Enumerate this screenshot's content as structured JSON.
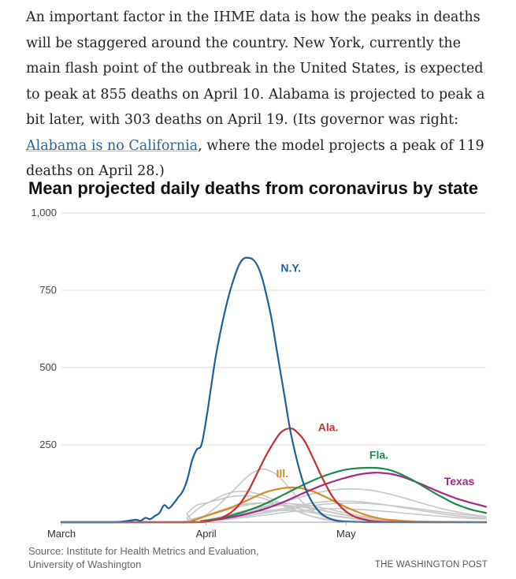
{
  "article": {
    "text_before_link": "An important factor in the IHME data is how the peaks in deaths will be staggered around the country. New York, currently the main flash point of the outbreak in the United States, is expected to peak at 855 deaths on April 10. Alabama is projected to peak a bit later, with 303 deaths on April 19. (Its governor was right: ",
    "link_text": "Alabama is no California",
    "text_after_link": ", where the model projects a peak of 119 deaths on April 28.)"
  },
  "chart_data": {
    "type": "line",
    "title": "Mean projected daily deaths from coronavirus by state",
    "xlabel": "",
    "ylabel": "",
    "x_unit": "day offset from March 1",
    "xlim": [
      0,
      91
    ],
    "ylim": [
      0,
      1000
    ],
    "yticks": [
      {
        "value": 0,
        "label": ""
      },
      {
        "value": 250,
        "label": "250"
      },
      {
        "value": 500,
        "label": "500"
      },
      {
        "value": 750,
        "label": "750"
      },
      {
        "value": 1000,
        "label": "1,000"
      }
    ],
    "xticks": [
      {
        "value": 0,
        "label": "March"
      },
      {
        "value": 31,
        "label": "April"
      },
      {
        "value": 61,
        "label": "May"
      }
    ],
    "grid": true,
    "series": [
      {
        "name": "N.Y.",
        "label": "N.Y.",
        "color": "#1f5fa0",
        "highlight": true,
        "label_x": 47,
        "label_y": 810,
        "x": [
          0,
          10,
          13,
          15,
          16,
          17,
          18,
          19,
          20,
          21,
          22,
          23,
          24,
          25,
          26,
          27,
          28,
          29,
          30,
          31,
          32,
          33,
          34,
          35,
          36,
          37,
          38,
          39,
          40,
          41,
          42,
          43,
          44,
          45,
          46,
          47,
          48,
          49,
          50,
          51,
          52,
          53,
          54,
          55,
          56,
          57,
          58,
          59,
          60,
          61,
          63,
          66,
          70,
          75,
          80,
          91
        ],
        "y": [
          0,
          0,
          2,
          6,
          8,
          5,
          14,
          10,
          20,
          30,
          55,
          45,
          60,
          80,
          100,
          140,
          200,
          235,
          250,
          330,
          430,
          530,
          610,
          680,
          740,
          790,
          830,
          852,
          855,
          850,
          830,
          790,
          730,
          660,
          570,
          480,
          390,
          300,
          230,
          170,
          120,
          85,
          58,
          38,
          24,
          15,
          9,
          5,
          3,
          2,
          1,
          0,
          0,
          0,
          0,
          0
        ]
      },
      {
        "name": "Ala.",
        "label": "Ala.",
        "color": "#c53030",
        "highlight": true,
        "label_x": 55,
        "label_y": 295,
        "x": [
          0,
          28,
          30,
          32,
          34,
          36,
          38,
          40,
          42,
          44,
          46,
          47,
          48,
          49,
          50,
          52,
          54,
          56,
          58,
          60,
          62,
          64,
          66,
          68,
          70,
          75,
          80,
          91
        ],
        "y": [
          0,
          0,
          2,
          5,
          12,
          28,
          55,
          100,
          160,
          220,
          270,
          290,
          300,
          303,
          298,
          265,
          205,
          140,
          85,
          48,
          24,
          12,
          5,
          2,
          1,
          0,
          0,
          0
        ]
      },
      {
        "name": "Fla.",
        "label": "Fla.",
        "color": "#1d8a4a",
        "highlight": true,
        "label_x": 66,
        "label_y": 205,
        "x": [
          0,
          28,
          30,
          33,
          36,
          40,
          44,
          48,
          52,
          56,
          60,
          63,
          66,
          68,
          70,
          72,
          74,
          76,
          78,
          80,
          82,
          84,
          86,
          88,
          91
        ],
        "y": [
          0,
          0,
          3,
          10,
          20,
          38,
          62,
          92,
          122,
          148,
          167,
          174,
          176,
          175,
          170,
          160,
          146,
          130,
          112,
          94,
          78,
          62,
          50,
          40,
          30
        ]
      },
      {
        "name": "Texas",
        "label": "Texas",
        "color": "#a02a8a",
        "highlight": true,
        "label_x": 82,
        "label_y": 120,
        "x": [
          0,
          28,
          30,
          33,
          36,
          40,
          44,
          48,
          52,
          56,
          60,
          64,
          67,
          69,
          71,
          73,
          75,
          77,
          79,
          81,
          83,
          85,
          87,
          89,
          91
        ],
        "y": [
          0,
          0,
          2,
          8,
          15,
          28,
          45,
          68,
          95,
          120,
          140,
          155,
          160,
          159,
          155,
          147,
          136,
          124,
          111,
          98,
          86,
          75,
          66,
          58,
          50
        ]
      },
      {
        "name": "Ill.",
        "label": "Ill.",
        "color": "#d98a20",
        "highlight": true,
        "label_x": 46,
        "label_y": 145,
        "x": [
          0,
          26,
          28,
          30,
          32,
          34,
          36,
          38,
          40,
          42,
          44,
          46,
          48,
          50,
          52,
          54,
          56,
          58,
          60,
          62,
          64,
          66,
          68,
          70,
          72,
          75,
          80,
          91
        ],
        "y": [
          0,
          0,
          5,
          15,
          25,
          35,
          45,
          58,
          72,
          86,
          98,
          106,
          111,
          112,
          108,
          99,
          86,
          71,
          56,
          42,
          30,
          20,
          13,
          8,
          5,
          2,
          1,
          0
        ]
      },
      {
        "name": "other-1",
        "label": "",
        "color": "#c8c8c8",
        "highlight": false,
        "x": [
          0,
          26,
          28,
          30,
          32,
          34,
          36,
          38,
          40,
          42,
          43,
          44,
          46,
          48,
          50,
          52,
          54,
          56,
          58,
          60,
          62,
          65,
          70,
          91
        ],
        "y": [
          0,
          0,
          5,
          15,
          35,
          60,
          90,
          120,
          150,
          168,
          172,
          170,
          155,
          125,
          90,
          60,
          36,
          20,
          10,
          5,
          2,
          1,
          0,
          0
        ]
      },
      {
        "name": "other-2",
        "label": "",
        "color": "#c8c8c8",
        "highlight": false,
        "x": [
          0,
          25,
          27,
          29,
          31,
          33,
          35,
          37,
          39,
          41,
          43,
          45,
          47,
          49,
          51,
          53,
          55,
          57,
          60,
          65,
          70,
          91
        ],
        "y": [
          0,
          0,
          15,
          40,
          60,
          75,
          90,
          98,
          100,
          96,
          88,
          76,
          62,
          48,
          34,
          22,
          13,
          7,
          3,
          1,
          0,
          0
        ]
      },
      {
        "name": "other-3",
        "label": "",
        "color": "#c8c8c8",
        "highlight": false,
        "x": [
          0,
          25,
          27,
          29,
          31,
          33,
          35,
          37,
          39,
          41,
          43,
          45,
          47,
          49,
          51,
          53,
          56,
          60,
          65,
          70,
          91
        ],
        "y": [
          0,
          0,
          30,
          55,
          62,
          70,
          78,
          84,
          86,
          84,
          78,
          68,
          56,
          44,
          32,
          22,
          12,
          5,
          2,
          0,
          0
        ]
      },
      {
        "name": "other-4",
        "label": "",
        "color": "#c8c8c8",
        "highlight": false,
        "x": [
          0,
          27,
          30,
          33,
          36,
          39,
          42,
          45,
          48,
          51,
          54,
          57,
          60,
          63,
          66,
          70,
          75,
          80,
          91
        ],
        "y": [
          0,
          0,
          5,
          12,
          22,
          34,
          46,
          56,
          60,
          58,
          52,
          43,
          33,
          24,
          16,
          9,
          4,
          2,
          0
        ]
      },
      {
        "name": "other-5",
        "label": "",
        "color": "#c8c8c8",
        "highlight": false,
        "x": [
          0,
          27,
          30,
          34,
          38,
          42,
          46,
          50,
          54,
          58,
          62,
          66,
          70,
          74,
          78,
          82,
          86,
          91
        ],
        "y": [
          0,
          0,
          4,
          12,
          24,
          40,
          58,
          76,
          92,
          104,
          108,
          104,
          92,
          76,
          58,
          42,
          30,
          18
        ]
      },
      {
        "name": "other-6",
        "label": "",
        "color": "#c8c8c8",
        "highlight": false,
        "x": [
          0,
          27,
          30,
          34,
          38,
          42,
          46,
          50,
          54,
          58,
          62,
          66,
          70,
          74,
          78,
          82,
          86,
          91
        ],
        "y": [
          0,
          0,
          3,
          8,
          16,
          26,
          36,
          46,
          54,
          60,
          62,
          60,
          55,
          48,
          40,
          32,
          25,
          18
        ]
      },
      {
        "name": "other-7",
        "label": "",
        "color": "#c8c8c8",
        "highlight": false,
        "x": [
          0,
          26,
          28,
          31,
          34,
          37,
          40,
          43,
          46,
          49,
          52,
          55,
          58,
          61,
          64,
          67,
          70,
          75,
          80,
          91
        ],
        "y": [
          0,
          0,
          8,
          20,
          34,
          46,
          56,
          62,
          64,
          60,
          52,
          42,
          32,
          23,
          15,
          9,
          5,
          2,
          1,
          0
        ]
      },
      {
        "name": "other-8",
        "label": "",
        "color": "#c8c8c8",
        "highlight": false,
        "x": [
          0,
          27,
          30,
          34,
          38,
          42,
          46,
          50,
          54,
          58,
          62,
          66,
          70,
          74,
          78,
          82,
          86,
          91
        ],
        "y": [
          0,
          0,
          4,
          10,
          18,
          28,
          40,
          52,
          62,
          68,
          68,
          63,
          55,
          45,
          35,
          26,
          19,
          13
        ]
      },
      {
        "name": "other-9",
        "label": "",
        "color": "#c8c8c8",
        "highlight": false,
        "x": [
          0,
          27,
          30,
          33,
          36,
          39,
          42,
          45,
          48,
          51,
          54,
          57,
          60,
          64,
          68,
          72,
          78,
          91
        ],
        "y": [
          0,
          0,
          6,
          14,
          25,
          36,
          46,
          52,
          54,
          50,
          43,
          34,
          25,
          16,
          9,
          5,
          2,
          0
        ]
      },
      {
        "name": "other-10",
        "label": "",
        "color": "#c8c8c8",
        "highlight": false,
        "x": [
          0,
          26,
          28,
          31,
          34,
          37,
          40,
          43,
          46,
          49,
          52,
          55,
          58,
          62,
          66,
          70,
          76,
          91
        ],
        "y": [
          0,
          0,
          10,
          22,
          38,
          52,
          60,
          62,
          58,
          50,
          40,
          30,
          21,
          12,
          6,
          3,
          1,
          0
        ]
      },
      {
        "name": "other-11",
        "label": "",
        "color": "#c8c8c8",
        "highlight": false,
        "x": [
          0,
          28,
          31,
          35,
          39,
          43,
          47,
          51,
          55,
          59,
          63,
          67,
          71,
          75,
          79,
          83,
          87,
          91
        ],
        "y": [
          0,
          0,
          3,
          8,
          15,
          22,
          30,
          37,
          42,
          44,
          42,
          38,
          33,
          27,
          22,
          17,
          13,
          10
        ]
      },
      {
        "name": "other-12",
        "label": "",
        "color": "#c8c8c8",
        "highlight": false,
        "x": [
          0,
          27,
          30,
          33,
          36,
          39,
          42,
          45,
          48,
          51,
          54,
          57,
          60,
          63,
          67,
          72,
          80,
          91
        ],
        "y": [
          0,
          0,
          5,
          12,
          20,
          28,
          34,
          38,
          38,
          35,
          30,
          24,
          18,
          12,
          7,
          4,
          1,
          0
        ]
      }
    ]
  },
  "footer": {
    "source_line1": "Source: Institute for Health Metrics and Evaluation,",
    "source_line2": "University of Washington",
    "credit": "THE WASHINGTON POST"
  }
}
